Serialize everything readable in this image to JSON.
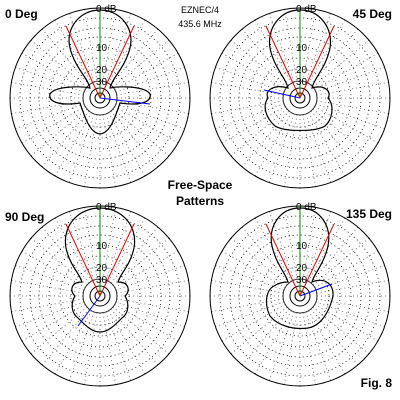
{
  "header": {
    "program": "EZNEC/4",
    "frequency": "435.6 MHz"
  },
  "center_title": [
    "Free-Space",
    "Patterns"
  ],
  "figure": "Fig. 8",
  "plots": [
    {
      "label": "0 Deg",
      "ring_labels": [
        "0 dB",
        "10",
        "20",
        "30"
      ]
    },
    {
      "label": "45 Deg",
      "ring_labels": [
        "0 dB",
        "10",
        "20",
        "30"
      ]
    },
    {
      "label": "90 Deg",
      "ring_labels": [
        "0 dB",
        "10",
        "20",
        "30"
      ]
    },
    {
      "label": "135 Deg",
      "ring_labels": [
        "0 dB",
        "10",
        "20",
        "30"
      ]
    }
  ]
}
